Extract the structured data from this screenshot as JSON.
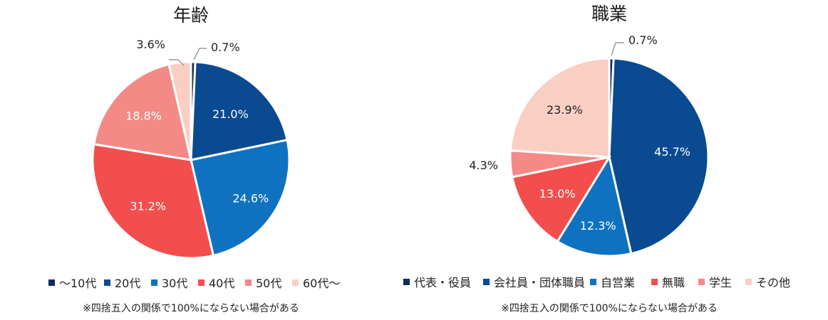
{
  "chart_data": [
    {
      "type": "pie",
      "title": "年齢",
      "slices": [
        {
          "label": "〜10代",
          "value": 0.7,
          "display": "0.7%",
          "color": "#0f2b5b"
        },
        {
          "label": "20代",
          "value": 21.0,
          "display": "21.0%",
          "color": "#0a4a90"
        },
        {
          "label": "30代",
          "value": 24.6,
          "display": "24.6%",
          "color": "#0f72c0"
        },
        {
          "label": "40代",
          "value": 31.2,
          "display": "31.2%",
          "color": "#f24e4e"
        },
        {
          "label": "50代",
          "value": 18.8,
          "display": "18.8%",
          "color": "#f38a86"
        },
        {
          "label": "60代〜",
          "value": 3.6,
          "display": "3.6%",
          "color": "#f9cfc4"
        }
      ],
      "note": "※四捨五入の関係で100%にならない場合がある"
    },
    {
      "type": "pie",
      "title": "職業",
      "slices": [
        {
          "label": "代表・役員",
          "value": 0.7,
          "display": "0.7%",
          "color": "#0f2b5b"
        },
        {
          "label": "会社員・団体職員",
          "value": 45.7,
          "display": "45.7%",
          "color": "#0a4a90"
        },
        {
          "label": "自営業",
          "value": 12.3,
          "display": "12.3%",
          "color": "#0f72c0"
        },
        {
          "label": "無職",
          "value": 13.0,
          "display": "13.0%",
          "color": "#f24e4e"
        },
        {
          "label": "学生",
          "value": 4.3,
          "display": "4.3%",
          "color": "#f38a86"
        },
        {
          "label": "その他",
          "value": 23.9,
          "display": "23.9%",
          "color": "#f9cfc4"
        }
      ],
      "note": "※四捨五入の関係で100%にならない場合がある"
    }
  ]
}
